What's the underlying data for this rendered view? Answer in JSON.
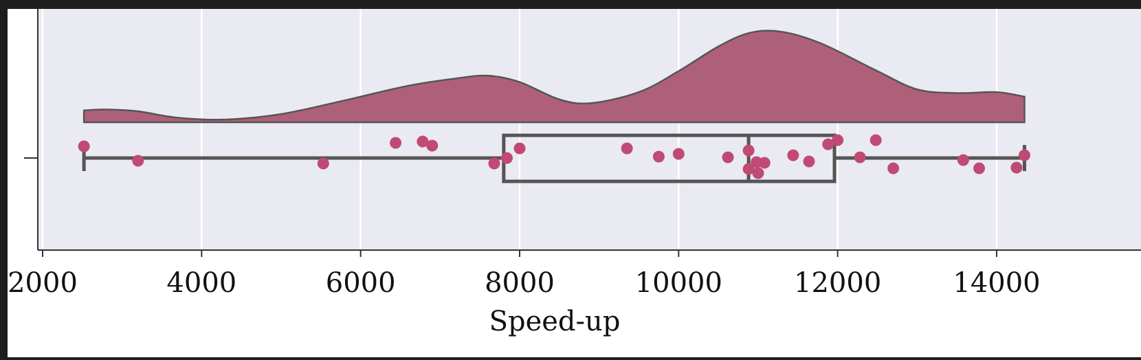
{
  "chart_data": {
    "type": "raincloud",
    "orientation": "horizontal",
    "title": "",
    "xlabel": "Speed-up",
    "ylabel": "",
    "xlim": [
      1900,
      15000
    ],
    "xticks": [
      2000,
      4000,
      6000,
      8000,
      10000,
      12000,
      14000
    ],
    "xtick_labels": [
      "2000",
      "4000",
      "6000",
      "8000",
      "10000",
      "12000",
      "14000"
    ],
    "grid": true,
    "colors": {
      "background": "#eaeaf2",
      "fill": "#ae607b",
      "points": "#c04a74",
      "box_line": "#555555",
      "grid": "#ffffff"
    },
    "points": [
      2520,
      3200,
      5530,
      6440,
      6780,
      6900,
      7680,
      7840,
      8000,
      9350,
      9750,
      10000,
      10620,
      10880,
      10880,
      10980,
      11000,
      11080,
      11440,
      11640,
      11880,
      12000,
      12280,
      12480,
      12700,
      13580,
      13780,
      14250,
      14350
    ],
    "box": {
      "whisker_low": 2520,
      "q1": 7800,
      "median": 10880,
      "q3": 11960,
      "whisker_high": 14350
    },
    "density": [
      [
        2520,
        0.13
      ],
      [
        2800,
        0.14
      ],
      [
        3200,
        0.12
      ],
      [
        3700,
        0.05
      ],
      [
        4300,
        0.03
      ],
      [
        5000,
        0.09
      ],
      [
        5800,
        0.24
      ],
      [
        6600,
        0.4
      ],
      [
        7200,
        0.48
      ],
      [
        7600,
        0.51
      ],
      [
        8000,
        0.44
      ],
      [
        8500,
        0.25
      ],
      [
        8900,
        0.21
      ],
      [
        9500,
        0.33
      ],
      [
        10000,
        0.56
      ],
      [
        10500,
        0.83
      ],
      [
        10900,
        0.98
      ],
      [
        11300,
        0.99
      ],
      [
        11800,
        0.86
      ],
      [
        12500,
        0.56
      ],
      [
        13000,
        0.36
      ],
      [
        13500,
        0.32
      ],
      [
        14000,
        0.33
      ],
      [
        14350,
        0.28
      ]
    ]
  }
}
